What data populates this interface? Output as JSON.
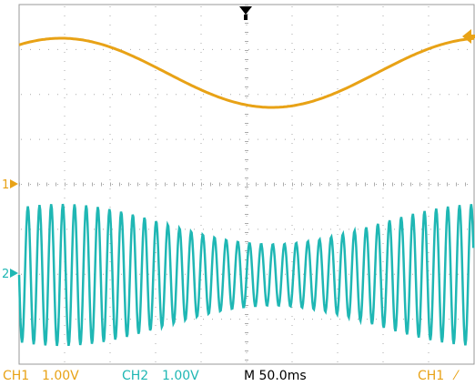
{
  "status_bar": {
    "ch1_label": "CH1",
    "ch1_scale": "1.00V",
    "ch2_label": "CH2",
    "ch2_scale": "1.00V",
    "timebase": "M 50.0ms",
    "trigger_source": "CH1",
    "trigger_slope_symbol": "⁄"
  },
  "markers": {
    "ch1_marker": "1",
    "ch2_marker": "2"
  },
  "colors": {
    "ch1": "#e8a216",
    "ch2": "#1fb7b4",
    "grid": "#aaaaaa"
  },
  "icons": {
    "trigger_position": "down-arrow-icon",
    "trigger_level": "left-arrow-icon"
  }
}
